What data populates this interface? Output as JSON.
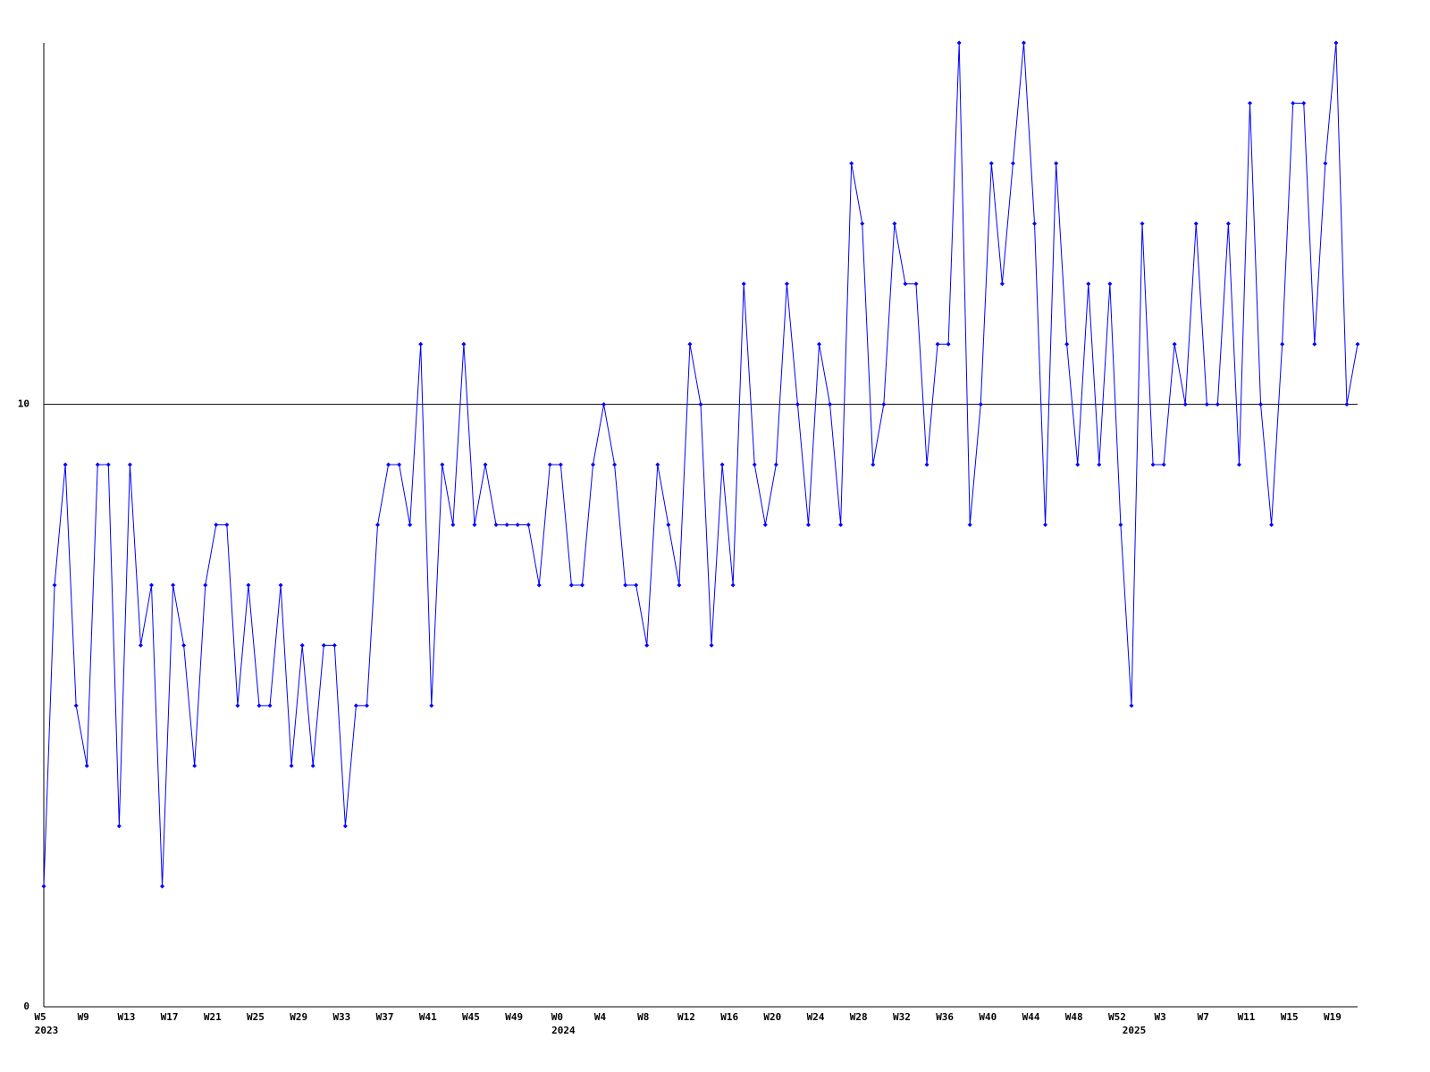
{
  "chart_data": {
    "type": "line",
    "categories": [
      "W5",
      null,
      null,
      null,
      "W9",
      null,
      null,
      null,
      "W13",
      null,
      null,
      null,
      "W17",
      null,
      null,
      null,
      "W21",
      null,
      null,
      null,
      "W25",
      null,
      null,
      null,
      "W29",
      null,
      null,
      null,
      "W33",
      null,
      null,
      null,
      "W37",
      null,
      null,
      null,
      "W41",
      null,
      null,
      null,
      "W45",
      null,
      null,
      null,
      "W49",
      null,
      null,
      null,
      "W0",
      null,
      null,
      null,
      "W4",
      null,
      null,
      null,
      "W8",
      null,
      null,
      null,
      "W12",
      null,
      null,
      null,
      "W16",
      null,
      null,
      null,
      "W20",
      null,
      null,
      null,
      "W24",
      null,
      null,
      null,
      "W28",
      null,
      null,
      null,
      "W32",
      null,
      null,
      null,
      "W36",
      null,
      null,
      null,
      "W40",
      null,
      null,
      null,
      "W44",
      null,
      null,
      null,
      "W48",
      null,
      null,
      null,
      "W52",
      null,
      null,
      null,
      "W3",
      null,
      null,
      null,
      "W7",
      null,
      null,
      null,
      "W11",
      null,
      null,
      null,
      "W15",
      null,
      null,
      null,
      "W19",
      null,
      null
    ],
    "category_years": [
      "2023",
      null,
      null,
      null,
      null,
      null,
      null,
      null,
      null,
      null,
      null,
      null,
      null,
      null,
      null,
      null,
      null,
      null,
      null,
      null,
      null,
      null,
      null,
      null,
      null,
      null,
      null,
      null,
      null,
      null,
      null,
      null,
      null,
      null,
      null,
      null,
      null,
      null,
      null,
      null,
      null,
      null,
      null,
      null,
      null,
      null,
      null,
      null,
      "2024",
      null,
      null,
      null,
      null,
      null,
      null,
      null,
      null,
      null,
      null,
      null,
      null,
      null,
      null,
      null,
      null,
      null,
      null,
      null,
      null,
      null,
      null,
      null,
      null,
      null,
      null,
      null,
      null,
      null,
      null,
      null,
      null,
      null,
      null,
      null,
      null,
      null,
      null,
      null,
      null,
      null,
      null,
      null,
      null,
      null,
      null,
      null,
      null,
      null,
      null,
      null,
      null,
      "2025",
      null,
      null,
      null,
      null,
      null,
      null,
      null,
      null,
      null,
      null,
      null,
      null,
      null,
      null,
      null,
      null,
      null,
      null,
      null,
      null,
      null
    ],
    "series": [
      {
        "color": "#0000ff",
        "values": [
          2,
          7,
          9,
          5,
          4,
          9,
          9,
          3,
          9,
          6,
          7,
          2,
          7,
          6,
          4,
          7,
          8,
          8,
          5,
          7,
          5,
          5,
          7,
          4,
          6,
          4,
          6,
          6,
          3,
          5,
          5,
          8,
          9,
          9,
          8,
          11,
          5,
          9,
          8,
          11,
          8,
          9,
          8,
          8,
          8,
          8,
          7,
          9,
          9,
          7,
          7,
          9,
          10,
          9,
          7,
          7,
          6,
          9,
          8,
          7,
          11,
          10,
          6,
          9,
          7,
          12,
          9,
          8,
          9,
          12,
          10,
          8,
          11,
          10,
          8,
          14,
          13,
          9,
          10,
          13,
          12,
          12,
          9,
          11,
          11,
          16,
          8,
          10,
          14,
          12,
          14,
          16,
          13,
          8,
          14,
          11,
          9,
          12,
          9,
          12,
          8,
          5,
          13,
          9,
          9,
          11,
          10,
          13,
          10,
          10,
          13,
          9,
          15,
          10,
          8,
          11,
          15,
          15,
          11,
          14,
          16,
          10,
          11
        ]
      }
    ],
    "ylim": [
      0,
      16
    ],
    "yticks": [
      0,
      10
    ],
    "grid": true
  }
}
